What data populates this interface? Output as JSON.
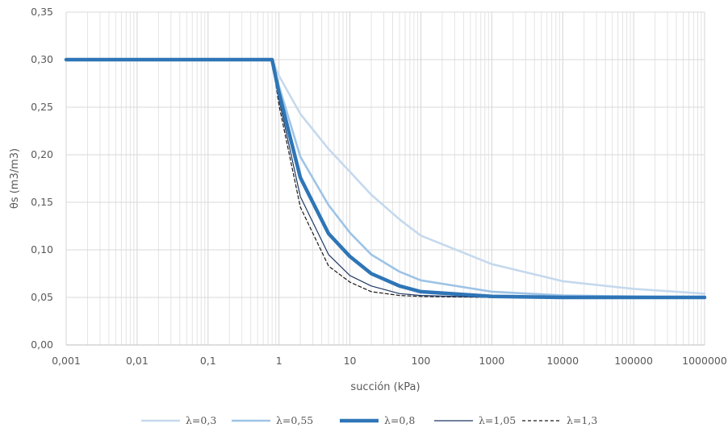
{
  "chart_data": {
    "type": "line",
    "xlabel": "succión (kPa)",
    "ylabel": "θs (m3/m3)",
    "x_scale": "log",
    "xlim": [
      0.001,
      1000000
    ],
    "ylim": [
      0,
      0.35
    ],
    "x_ticks": [
      "0,001",
      "0,01",
      "0,1",
      "1",
      "10",
      "100",
      "1000",
      "10000",
      "100000",
      "1000000"
    ],
    "y_ticks": [
      "0,00",
      "0,05",
      "0,10",
      "0,15",
      "0,20",
      "0,25",
      "0,30",
      "0,35"
    ],
    "grid": true,
    "legend_position": "bottom",
    "series": [
      {
        "name": "λ=0,3",
        "color": "#c5d9ed",
        "style": "solid",
        "x": [
          0.001,
          0.01,
          0.1,
          0.8,
          1,
          2,
          5,
          10,
          20,
          50,
          100,
          1000,
          10000,
          100000,
          1000000
        ],
        "values": [
          0.3,
          0.3,
          0.3,
          0.3,
          0.283,
          0.243,
          0.206,
          0.182,
          0.158,
          0.132,
          0.115,
          0.085,
          0.067,
          0.059,
          0.054
        ]
      },
      {
        "name": "λ=0,55",
        "color": "#9dc3e6",
        "style": "solid",
        "x": [
          0.001,
          0.01,
          0.1,
          0.8,
          1,
          2,
          5,
          10,
          20,
          50,
          100,
          1000,
          10000,
          100000,
          1000000
        ],
        "values": [
          0.3,
          0.3,
          0.3,
          0.3,
          0.272,
          0.198,
          0.147,
          0.118,
          0.095,
          0.077,
          0.068,
          0.056,
          0.052,
          0.051,
          0.05
        ]
      },
      {
        "name": "λ=0,8",
        "color": "#2e75b6",
        "style": "thick",
        "x": [
          0.001,
          0.01,
          0.1,
          0.8,
          1,
          2,
          5,
          10,
          20,
          50,
          100,
          1000,
          10000,
          100000,
          1000000
        ],
        "values": [
          0.3,
          0.3,
          0.3,
          0.3,
          0.265,
          0.176,
          0.117,
          0.093,
          0.075,
          0.062,
          0.056,
          0.051,
          0.05,
          0.05,
          0.05
        ]
      },
      {
        "name": "λ=1,05",
        "color": "#1f3864",
        "style": "solid",
        "x": [
          0.001,
          0.01,
          0.1,
          0.8,
          1,
          2,
          5,
          10,
          20,
          50,
          100,
          1000,
          10000,
          100000,
          1000000
        ],
        "values": [
          0.3,
          0.3,
          0.3,
          0.3,
          0.258,
          0.156,
          0.095,
          0.073,
          0.062,
          0.054,
          0.052,
          0.05,
          0.05,
          0.05,
          0.05
        ]
      },
      {
        "name": "λ=1,3",
        "color": "#1a1a1a",
        "style": "dashed",
        "x": [
          0.001,
          0.01,
          0.1,
          0.8,
          1,
          2,
          5,
          10,
          20,
          50,
          100,
          1000,
          10000,
          100000,
          1000000
        ],
        "values": [
          0.3,
          0.3,
          0.3,
          0.3,
          0.252,
          0.145,
          0.083,
          0.066,
          0.056,
          0.052,
          0.051,
          0.05,
          0.05,
          0.05,
          0.05
        ]
      }
    ]
  }
}
